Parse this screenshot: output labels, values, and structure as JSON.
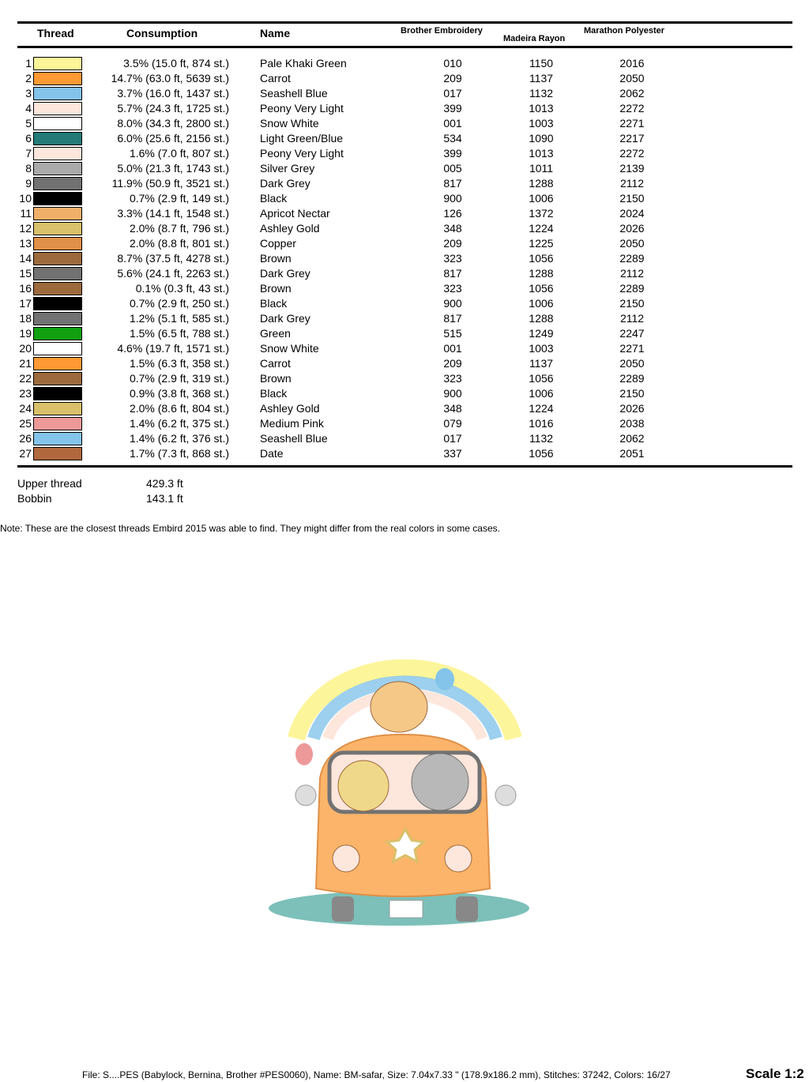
{
  "header": {
    "thread": "Thread",
    "consumption": "Consumption",
    "name": "Name",
    "brother": "Brother Embroidery",
    "madeira": "Madeira Rayon",
    "marathon": "Marathon Polyester"
  },
  "threads": [
    {
      "n": "1",
      "color": "#fdf59a",
      "consumption": "3.5% (15.0 ft, 874 st.)",
      "name": "Pale Khaki Green",
      "brother": "010",
      "madeira": "1150",
      "marathon": "2016"
    },
    {
      "n": "2",
      "color": "#ff9933",
      "consumption": "14.7% (63.0 ft, 5639 st.)",
      "name": "Carrot",
      "brother": "209",
      "madeira": "1137",
      "marathon": "2050"
    },
    {
      "n": "3",
      "color": "#84c4ea",
      "consumption": "3.7% (16.0 ft, 1437 st.)",
      "name": "Seashell Blue",
      "brother": "017",
      "madeira": "1132",
      "marathon": "2062"
    },
    {
      "n": "4",
      "color": "#fde6dc",
      "consumption": "5.7% (24.3 ft, 1725 st.)",
      "name": "Peony Very Light",
      "brother": "399",
      "madeira": "1013",
      "marathon": "2272"
    },
    {
      "n": "5",
      "color": "#ffffff",
      "consumption": "8.0% (34.3 ft, 2800 st.)",
      "name": "Snow White",
      "brother": "001",
      "madeira": "1003",
      "marathon": "2271"
    },
    {
      "n": "6",
      "color": "#247b78",
      "consumption": "6.0% (25.6 ft, 2156 st.)",
      "name": "Light Green/Blue",
      "brother": "534",
      "madeira": "1090",
      "marathon": "2217"
    },
    {
      "n": "7",
      "color": "#fde6dc",
      "consumption": "1.6% (7.0 ft, 807 st.)",
      "name": "Peony Very Light",
      "brother": "399",
      "madeira": "1013",
      "marathon": "2272"
    },
    {
      "n": "8",
      "color": "#aaaaaa",
      "consumption": "5.0% (21.3 ft, 1743 st.)",
      "name": "Silver Grey",
      "brother": "005",
      "madeira": "1011",
      "marathon": "2139"
    },
    {
      "n": "9",
      "color": "#727272",
      "consumption": "11.9% (50.9 ft, 3521 st.)",
      "name": "Dark Grey",
      "brother": "817",
      "madeira": "1288",
      "marathon": "2112"
    },
    {
      "n": "10",
      "color": "#000000",
      "consumption": "0.7% (2.9 ft, 149 st.)",
      "name": "Black",
      "brother": "900",
      "madeira": "1006",
      "marathon": "2150"
    },
    {
      "n": "11",
      "color": "#f0b06a",
      "consumption": "3.3% (14.1 ft, 1548 st.)",
      "name": "Apricot Nectar",
      "brother": "126",
      "madeira": "1372",
      "marathon": "2024"
    },
    {
      "n": "12",
      "color": "#d9c06a",
      "consumption": "2.0% (8.7 ft, 796 st.)",
      "name": "Ashley Gold",
      "brother": "348",
      "madeira": "1224",
      "marathon": "2026"
    },
    {
      "n": "13",
      "color": "#e09048",
      "consumption": "2.0% (8.8 ft, 801 st.)",
      "name": "Copper",
      "brother": "209",
      "madeira": "1225",
      "marathon": "2050"
    },
    {
      "n": "14",
      "color": "#9c6a3c",
      "consumption": "8.7% (37.5 ft, 4278 st.)",
      "name": "Brown",
      "brother": "323",
      "madeira": "1056",
      "marathon": "2289"
    },
    {
      "n": "15",
      "color": "#727272",
      "consumption": "5.6% (24.1 ft, 2263 st.)",
      "name": "Dark Grey",
      "brother": "817",
      "madeira": "1288",
      "marathon": "2112"
    },
    {
      "n": "16",
      "color": "#9c6a3c",
      "consumption": "0.1% (0.3 ft, 43 st.)",
      "name": "Brown",
      "brother": "323",
      "madeira": "1056",
      "marathon": "2289"
    },
    {
      "n": "17",
      "color": "#000000",
      "consumption": "0.7% (2.9 ft, 250 st.)",
      "name": "Black",
      "brother": "900",
      "madeira": "1006",
      "marathon": "2150"
    },
    {
      "n": "18",
      "color": "#727272",
      "consumption": "1.2% (5.1 ft, 585 st.)",
      "name": "Dark Grey",
      "brother": "817",
      "madeira": "1288",
      "marathon": "2112"
    },
    {
      "n": "19",
      "color": "#10a010",
      "consumption": "1.5% (6.5 ft, 788 st.)",
      "name": "Green",
      "brother": "515",
      "madeira": "1249",
      "marathon": "2247"
    },
    {
      "n": "20",
      "color": "#ffffff",
      "consumption": "4.6% (19.7 ft, 1571 st.)",
      "name": "Snow White",
      "brother": "001",
      "madeira": "1003",
      "marathon": "2271"
    },
    {
      "n": "21",
      "color": "#ff9933",
      "consumption": "1.5% (6.3 ft, 358 st.)",
      "name": "Carrot",
      "brother": "209",
      "madeira": "1137",
      "marathon": "2050"
    },
    {
      "n": "22",
      "color": "#9c6a3c",
      "consumption": "0.7% (2.9 ft, 319 st.)",
      "name": "Brown",
      "brother": "323",
      "madeira": "1056",
      "marathon": "2289"
    },
    {
      "n": "23",
      "color": "#000000",
      "consumption": "0.9% (3.8 ft, 368 st.)",
      "name": "Black",
      "brother": "900",
      "madeira": "1006",
      "marathon": "2150"
    },
    {
      "n": "24",
      "color": "#d9c06a",
      "consumption": "2.0% (8.6 ft, 804 st.)",
      "name": "Ashley Gold",
      "brother": "348",
      "madeira": "1224",
      "marathon": "2026"
    },
    {
      "n": "25",
      "color": "#ee9999",
      "consumption": "1.4% (6.2 ft, 375 st.)",
      "name": "Medium Pink",
      "brother": "079",
      "madeira": "1016",
      "marathon": "2038"
    },
    {
      "n": "26",
      "color": "#84c4ea",
      "consumption": "1.4% (6.2 ft, 376 st.)",
      "name": "Seashell Blue",
      "brother": "017",
      "madeira": "1132",
      "marathon": "2062"
    },
    {
      "n": "27",
      "color": "#b0683c",
      "consumption": "1.7% (7.3 ft, 868 st.)",
      "name": "Date",
      "brother": "337",
      "madeira": "1056",
      "marathon": "2051"
    }
  ],
  "totals": {
    "upper_label": "Upper thread",
    "upper_value": "429.3 ft",
    "bobbin_label": "Bobbin",
    "bobbin_value": "143.1 ft"
  },
  "note": "Note: These are the closest threads Embird 2015 was able to find. They might differ from the real colors in some cases.",
  "footer": {
    "info": "File: S....PES (Babylock, Bernina, Brother #PES0060), Name: BM-safar, Size: 7.04x7.33 \" (178.9x186.2 mm), Stitches: 37242, Colors: 16/27",
    "scale": "Scale 1:2"
  }
}
